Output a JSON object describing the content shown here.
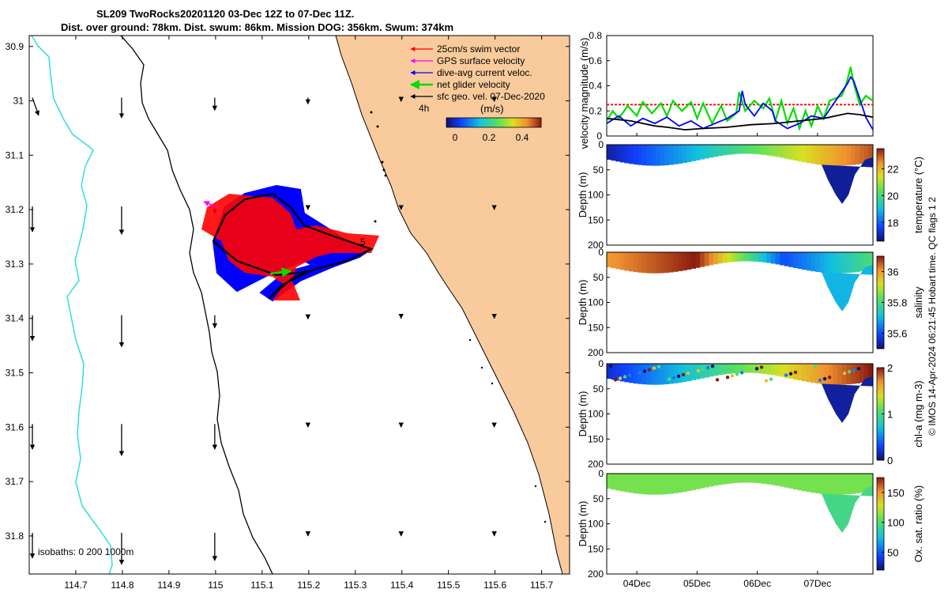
{
  "title": {
    "line1": "SL209 TwoRocks20201120 03-Dec 12Z to 07-Dec 11Z.",
    "line2": "Dist. over ground: 78km. Dist. swum: 86km. Mission DOG: 356km. Swum: 374km"
  },
  "colors": {
    "land": "#f9cb9c",
    "isobath_0": "#000000",
    "isobath_200": "#000000",
    "isobath_1000": "#33dddd",
    "swim": "#ff0000",
    "gps": "#ff00ff",
    "dive_avg": "#0000ff",
    "net": "#00dd00",
    "sfc_geo": "#000000"
  },
  "chart_data": [
    {
      "type": "map",
      "xlim": [
        114.6,
        115.76
      ],
      "ylim": [
        31.87,
        30.88
      ],
      "x_ticks": [
        "114.7",
        "114.8",
        "114.9",
        "115",
        "115.1",
        "115.2",
        "115.3",
        "115.4",
        "115.5",
        "115.6",
        "115.7"
      ],
      "y_ticks": [
        "30.9",
        "31",
        "31.1",
        "31.2",
        "31.3",
        "31.4",
        "31.5",
        "31.6",
        "31.7",
        "31.8"
      ],
      "legend": [
        {
          "label": "25cm/s swim vector",
          "color": "#ff0000"
        },
        {
          "label": "GPS surface velocity",
          "color": "#ff00ff"
        },
        {
          "label": "dive-avg current veloc.",
          "color": "#0000ff"
        },
        {
          "label": "net glider velocity",
          "color": "#00dd00"
        },
        {
          "label": "sfc geo. vel. 07-Dec-2020",
          "color": "#000000"
        }
      ],
      "speed_scale_label": "4h",
      "colorbar": {
        "unit": "(m/s)",
        "ticks": [
          "0",
          "0.2",
          "0.4"
        ],
        "range": [
          0,
          0.5
        ]
      },
      "isobath_note": "isobaths: 0   200  1000m",
      "marker_labels": [
        "5"
      ],
      "track": [
        [
          115.15,
          31.26
        ],
        [
          115.17,
          31.22
        ],
        [
          115.2,
          31.2
        ],
        [
          115.22,
          31.2
        ],
        [
          115.25,
          31.22
        ],
        [
          115.28,
          31.245
        ],
        [
          115.31,
          31.26
        ],
        [
          115.33,
          31.275
        ],
        [
          115.3,
          31.3
        ],
        [
          115.25,
          31.31
        ],
        [
          115.2,
          31.32
        ],
        [
          115.17,
          31.345
        ],
        [
          115.15,
          31.36
        ],
        [
          115.18,
          31.33
        ],
        [
          115.2,
          31.315
        ],
        [
          115.15,
          31.31
        ],
        [
          115.1,
          31.3
        ],
        [
          115.05,
          31.28
        ],
        [
          115.04,
          31.26
        ],
        [
          115.06,
          31.23
        ],
        [
          115.1,
          31.21
        ],
        [
          115.14,
          31.2
        ],
        [
          115.2,
          31.2
        ]
      ],
      "surface_vectors": {
        "lons": [
          114.6,
          114.8,
          115.0,
          115.2,
          115.4,
          115.6
        ],
        "lats": [
          31.0,
          31.2,
          31.4,
          31.6,
          31.8
        ],
        "v_mps": [
          [
            0.14,
            0.16,
            0.1,
            0.05,
            0.03,
            0.03
          ],
          [
            0.2,
            0.22,
            0.06,
            0.02,
            0.02,
            0.02
          ],
          [
            0.2,
            0.25,
            0.1,
            0.03,
            0.02,
            0.02
          ],
          [
            0.2,
            0.25,
            0.2,
            0.02,
            0.02,
            0.02
          ],
          [
            0.2,
            0.25,
            0.22,
            0.02,
            0.02,
            0.02
          ]
        ]
      }
    },
    {
      "type": "line",
      "ylabel": "velocity magnitude (m/s)",
      "ylim": [
        0,
        0.8
      ],
      "y_ticks": [
        "0",
        "0.2",
        "0.4",
        "0.6",
        "0.8"
      ],
      "xlim": [
        0,
        4.42
      ],
      "series": [
        {
          "color": "#ff0000",
          "dashed": true,
          "x": [
            0,
            4.42
          ],
          "values": [
            0.25,
            0.25
          ]
        },
        {
          "color": "#00dd00",
          "x": [
            0,
            0.1,
            0.2,
            0.35,
            0.5,
            0.6,
            0.75,
            0.9,
            1.0,
            1.1,
            1.25,
            1.4,
            1.5,
            1.6,
            1.75,
            1.9,
            2.0,
            2.15,
            2.2,
            2.3,
            2.45,
            2.6,
            2.7,
            2.8,
            2.9,
            3.0,
            3.1,
            3.2,
            3.3,
            3.4,
            3.5,
            3.6,
            3.7,
            3.8,
            3.9,
            3.97,
            4.05,
            4.1,
            4.2,
            4.3,
            4.42
          ],
          "values": [
            0.12,
            0.2,
            0.14,
            0.24,
            0.16,
            0.27,
            0.18,
            0.26,
            0.16,
            0.28,
            0.2,
            0.27,
            0.14,
            0.26,
            0.1,
            0.24,
            0.12,
            0.18,
            0.35,
            0.2,
            0.28,
            0.22,
            0.3,
            0.12,
            0.28,
            0.1,
            0.22,
            0.06,
            0.2,
            0.08,
            0.24,
            0.14,
            0.28,
            0.3,
            0.32,
            0.4,
            0.55,
            0.42,
            0.25,
            0.32,
            0.28
          ]
        },
        {
          "color": "#0000ff",
          "x": [
            0,
            0.2,
            0.4,
            0.6,
            0.8,
            1.0,
            1.2,
            1.4,
            1.6,
            1.8,
            2.0,
            2.2,
            2.25,
            2.3,
            2.45,
            2.6,
            2.75,
            2.8,
            3.0,
            3.2,
            3.4,
            3.6,
            3.8,
            4.0,
            4.05,
            4.1,
            4.2,
            4.3,
            4.42
          ],
          "values": [
            0.1,
            0.16,
            0.08,
            0.14,
            0.1,
            0.15,
            0.08,
            0.12,
            0.06,
            0.1,
            0.14,
            0.2,
            0.36,
            0.25,
            0.16,
            0.26,
            0.2,
            0.12,
            0.06,
            0.1,
            0.16,
            0.14,
            0.28,
            0.42,
            0.47,
            0.44,
            0.3,
            0.15,
            0.05
          ]
        },
        {
          "color": "#000000",
          "x": [
            0,
            0.4,
            0.8,
            1.0,
            1.3,
            1.6,
            2.0,
            2.4,
            2.8,
            3.2,
            3.6,
            4.0,
            4.2,
            4.42
          ],
          "values": [
            0.14,
            0.12,
            0.08,
            0.07,
            0.05,
            0.06,
            0.07,
            0.09,
            0.1,
            0.12,
            0.14,
            0.18,
            0.17,
            0.15
          ]
        }
      ]
    },
    {
      "type": "heatmap",
      "variable": "temperature",
      "ylabel": "Depth (m)",
      "clabel": "temperature (°C)",
      "ylim": [
        200,
        0
      ],
      "y_ticks": [
        "0",
        "50",
        "100",
        "150",
        "200"
      ],
      "crange": [
        16.6,
        23.5
      ],
      "cticks": [
        "18",
        "20",
        "22"
      ],
      "cticks_values": [
        18,
        20,
        22
      ],
      "surface": [
        17,
        23
      ],
      "bottom": [
        30,
        16.9
      ]
    },
    {
      "type": "heatmap",
      "variable": "salinity",
      "ylabel": "Depth (m)",
      "clabel": "salinity",
      "ylim": [
        200,
        0
      ],
      "y_ticks": [
        "0",
        "50",
        "100",
        "150",
        "200"
      ],
      "crange": [
        35.5,
        36.1
      ],
      "cticks": [
        "35.6",
        "35.8",
        "36"
      ],
      "cticks_values": [
        35.6,
        35.8,
        36
      ],
      "surface": [
        36.0,
        36.1,
        35.6,
        35.8
      ],
      "bottom": [
        35.75,
        35.7
      ]
    },
    {
      "type": "heatmap",
      "variable": "chl-a",
      "ylabel": "Depth (m)",
      "clabel": "chl-a (mg m-3)",
      "ylim": [
        200,
        0
      ],
      "y_ticks": [
        "0",
        "50",
        "100",
        "150",
        "200"
      ],
      "crange": [
        0,
        2
      ],
      "cticks": [
        "0",
        "1",
        "2"
      ],
      "cticks_values": [
        0,
        1,
        2
      ],
      "surface": [
        0.2,
        2
      ],
      "bottom": [
        0.1
      ]
    },
    {
      "type": "heatmap",
      "variable": "oxygen",
      "ylabel": "Depth (m)",
      "clabel": "Ox. sat. ratio (%)",
      "ylim": [
        200,
        0
      ],
      "y_ticks": [
        "0",
        "50",
        "100",
        "150",
        "200"
      ],
      "crange": [
        20,
        175
      ],
      "cticks": [
        "50",
        "100",
        "150"
      ],
      "cticks_values": [
        50,
        100,
        150
      ],
      "surface": [
        110
      ],
      "bottom": [
        95
      ]
    }
  ],
  "time_axis": {
    "ticks": [
      "04Dec",
      "05Dec",
      "06Dec",
      "07Dec"
    ],
    "tick_days": [
      0.5,
      1.5,
      2.5,
      3.5
    ]
  },
  "footer": "© IMOS 14-Apr-2024 06:21:45 Hobart time. QC flags 1  2"
}
